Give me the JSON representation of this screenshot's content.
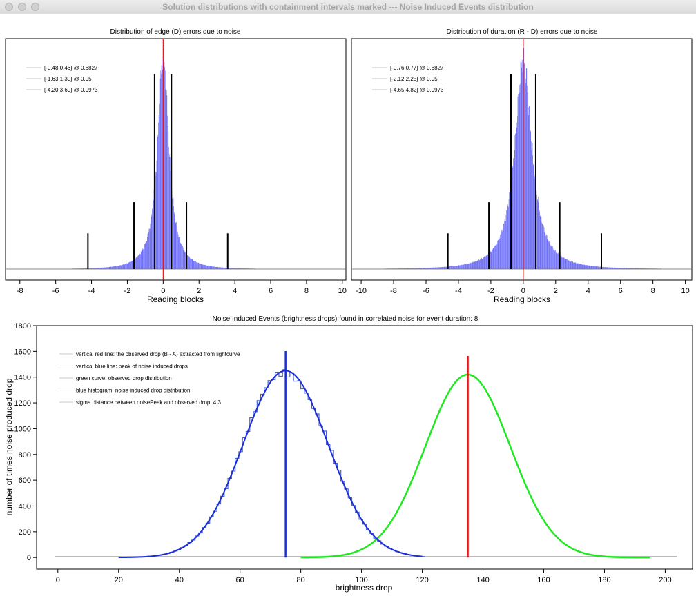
{
  "window": {
    "title": "Solution distributions with containment intervals marked --- Noise Induced Events distribution"
  },
  "colors": {
    "histogram_fill": "#6f6ff5",
    "observed_red": "#e81414",
    "peak_blue": "#1a2ed6",
    "observed_green": "#1ee81e",
    "interval_black": "#000000",
    "baseline_gray": "#a0a0a0"
  },
  "chart_data": [
    {
      "type": "bar",
      "title": "Distribution of edge (D) errors due to noise",
      "xlabel": "Reading blocks",
      "ylabel": "",
      "xlim": [
        -8.8,
        10.2
      ],
      "xticks": [
        -8,
        -6,
        -4,
        -2,
        0,
        2,
        4,
        6,
        8,
        10
      ],
      "grid": false,
      "legend": {
        "position": "top-left",
        "entries": [
          "[-0.48,0.46] @ 0.6827",
          "[-1.63,1.30] @ 0.95",
          "[-4.20,3.60] @ 0.9973"
        ]
      },
      "intervals": [
        {
          "confidence": 0.6827,
          "low": -0.48,
          "high": 0.46
        },
        {
          "confidence": 0.95,
          "low": -1.63,
          "high": 1.3
        },
        {
          "confidence": 0.9973,
          "low": -4.2,
          "high": 3.6
        }
      ],
      "distribution": {
        "center": 0.0,
        "shape": "peaked",
        "width": 0.45,
        "series_name": ""
      },
      "red_line_x": 0.0
    },
    {
      "type": "bar",
      "title": "Distribution of duration (R - D) errors due to noise",
      "xlabel": "Reading blocks",
      "ylabel": "",
      "xlim": [
        -10.6,
        10.4
      ],
      "xticks": [
        -10,
        -8,
        -6,
        -4,
        -2,
        0,
        2,
        4,
        6,
        8,
        10
      ],
      "grid": false,
      "legend": {
        "position": "top-left",
        "entries": [
          "[-0.76,0.77] @ 0.6827",
          "[-2.12,2.25] @ 0.95",
          "[-4.65,4.82] @ 0.9973"
        ]
      },
      "intervals": [
        {
          "confidence": 0.6827,
          "low": -0.76,
          "high": 0.77
        },
        {
          "confidence": 0.95,
          "low": -2.12,
          "high": 2.25
        },
        {
          "confidence": 0.9973,
          "low": -4.65,
          "high": 4.82
        }
      ],
      "distribution": {
        "center": 0.0,
        "shape": "peaked",
        "width": 0.75,
        "series_name": ""
      },
      "red_line_x": 0.0
    },
    {
      "type": "line",
      "title": "Noise Induced Events (brightness drops) found in correlated noise for event duration: 8",
      "xlabel": "brightness drop",
      "ylabel": "number of times noise produced drop",
      "xlim": [
        -7,
        209
      ],
      "ylim": [
        -90,
        1800
      ],
      "xticks": [
        0,
        20,
        40,
        60,
        80,
        100,
        120,
        140,
        160,
        180,
        200
      ],
      "yticks": [
        0,
        200,
        400,
        600,
        800,
        1000,
        1200,
        1400,
        1600,
        1800
      ],
      "grid": false,
      "legend": {
        "position": "top-left",
        "entries": [
          "vertical red line: the observed drop (B - A) extracted from lightcurve",
          "vertical blue line: peak of noise induced drops",
          "green curve: observed drop distribution",
          "blue histogram: noise induced drop distribution",
          "sigma distance between noisePeak and observed drop: 4.3"
        ]
      },
      "series": [
        {
          "name": "blue histogram: noise induced drop distribution",
          "kind": "gaussian",
          "mean": 75,
          "sigma": 14,
          "amplitude": 1450
        },
        {
          "name": "green curve: observed drop distribution",
          "kind": "gaussian",
          "mean": 135,
          "sigma": 14,
          "amplitude": 1420
        }
      ],
      "noise_peak_x": 75,
      "observed_drop_x": 135
    }
  ]
}
